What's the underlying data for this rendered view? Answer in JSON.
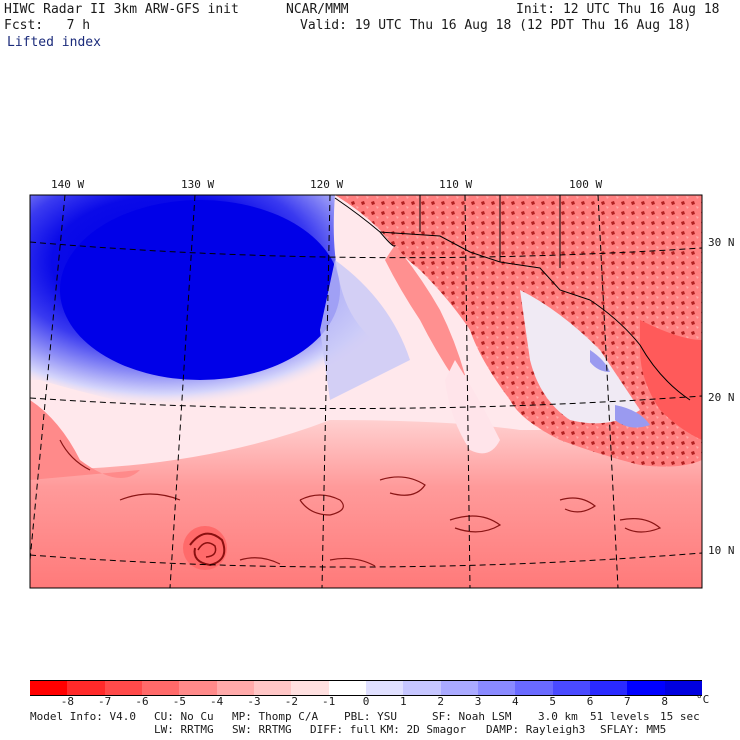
{
  "header": {
    "title_left": "HIWC Radar II 3km ARW-GFS init",
    "org": "NCAR/MMM",
    "init": "Init: 12 UTC Thu 16 Aug 18",
    "fcst": "Fcst:   7 h",
    "valid": "Valid: 19 UTC Thu 16 Aug 18 (12 PDT Thu 16 Aug 18)",
    "field": "Lifted index"
  },
  "map": {
    "lon_labels": [
      "140 W",
      "130 W",
      "120 W",
      "110 W",
      "100 W"
    ],
    "lat_labels": [
      "30 N",
      "20 N",
      "10 N"
    ]
  },
  "colorbar": {
    "labels": [
      "-8",
      "-7",
      "-6",
      "-5",
      "-4",
      "-3",
      "-2",
      "-1",
      "0",
      "1",
      "2",
      "3",
      "4",
      "5",
      "6",
      "7",
      "8"
    ],
    "unit": "°C",
    "colors": [
      "#ff0000",
      "#ff2a2a",
      "#ff4a4a",
      "#ff6a6a",
      "#ff8a8a",
      "#ffaaaa",
      "#ffc6c6",
      "#ffe0e0",
      "#ffffff",
      "#e0e0ff",
      "#c6c6ff",
      "#aaaaff",
      "#8a8aff",
      "#6a6aff",
      "#4a4aff",
      "#2a2aff",
      "#0000ff",
      "#0000e0"
    ]
  },
  "footer": {
    "row1": [
      "Model Info: V4.0",
      "CU: No Cu",
      "MP: Thomp C/A",
      "PBL: YSU",
      "SF: Noah LSM",
      "3.0 km",
      "51 levels",
      "15 sec"
    ],
    "row2": [
      "LW: RRTMG",
      "SW: RRTMG",
      "DIFF: full",
      "KM: 2D Smagor",
      "DAMP: Rayleigh3",
      "SFLAY: MM5"
    ]
  }
}
